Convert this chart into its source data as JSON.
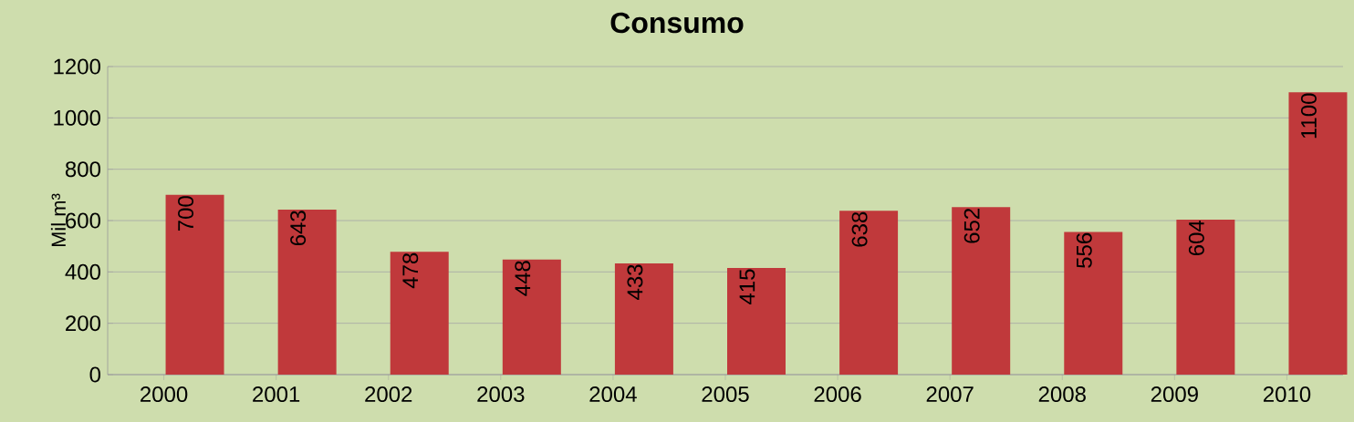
{
  "chart_data": {
    "type": "bar",
    "title": "Consumo",
    "ylabel": "Mil m³",
    "categories": [
      "2000",
      "2001",
      "2002",
      "2003",
      "2004",
      "2005",
      "2006",
      "2007",
      "2008",
      "2009",
      "2010"
    ],
    "values": [
      700,
      643,
      478,
      448,
      433,
      415,
      638,
      652,
      556,
      604,
      1100
    ],
    "value_labels": [
      "700",
      "643",
      "478",
      "448",
      "433",
      "415",
      "638",
      "652",
      "556",
      "604",
      "1100"
    ],
    "color": "#c0393b",
    "ylim": [
      0,
      1200
    ],
    "yticks": [
      0,
      200,
      400,
      600,
      800,
      1000,
      1200
    ],
    "grid": "y"
  }
}
